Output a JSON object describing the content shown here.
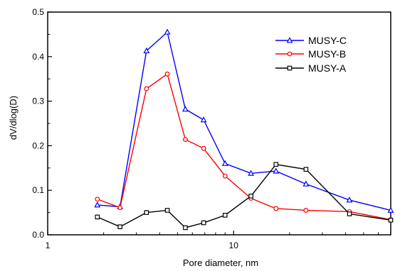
{
  "chart_data": {
    "type": "line",
    "xscale": "log",
    "xlim": [
      1,
      70
    ],
    "ylim": [
      0,
      0.5
    ],
    "x_ticks": [
      1,
      10
    ],
    "x_tick_labels": [
      "1",
      "10"
    ],
    "y_ticks": [
      0,
      0.1,
      0.2,
      0.3,
      0.4,
      0.5
    ],
    "y_tick_labels": [
      "0.0",
      "0.1",
      "0.2",
      "0.3",
      "0.4",
      "0.5"
    ],
    "xlabel": "Pore diameter, nm",
    "ylabel": "dV/dlog(D)",
    "legend_position": "top-right",
    "grid": false,
    "series": [
      {
        "name": "MUSY-C",
        "color": "#0000ff",
        "marker": "triangle",
        "x": [
          1.85,
          2.45,
          3.4,
          4.4,
          5.5,
          6.9,
          9.0,
          12.4,
          16.9,
          24.5,
          42.0,
          70.0
        ],
        "y": [
          0.067,
          0.063,
          0.413,
          0.455,
          0.282,
          0.258,
          0.16,
          0.138,
          0.143,
          0.114,
          0.078,
          0.055
        ]
      },
      {
        "name": "MUSY-B",
        "color": "#ff0000",
        "marker": "circle",
        "x": [
          1.85,
          2.45,
          3.4,
          4.4,
          5.5,
          6.9,
          9.0,
          12.4,
          16.9,
          24.5,
          42.0,
          70.0
        ],
        "y": [
          0.08,
          0.061,
          0.328,
          0.361,
          0.214,
          0.194,
          0.132,
          0.082,
          0.059,
          0.055,
          0.052,
          0.034
        ]
      },
      {
        "name": "MUSY-A",
        "color": "#000000",
        "marker": "square",
        "x": [
          1.85,
          2.45,
          3.4,
          4.4,
          5.5,
          6.9,
          9.0,
          12.4,
          16.9,
          24.5,
          42.0,
          70.0
        ],
        "y": [
          0.04,
          0.018,
          0.05,
          0.055,
          0.016,
          0.027,
          0.044,
          0.087,
          0.158,
          0.147,
          0.047,
          0.033
        ]
      }
    ]
  }
}
